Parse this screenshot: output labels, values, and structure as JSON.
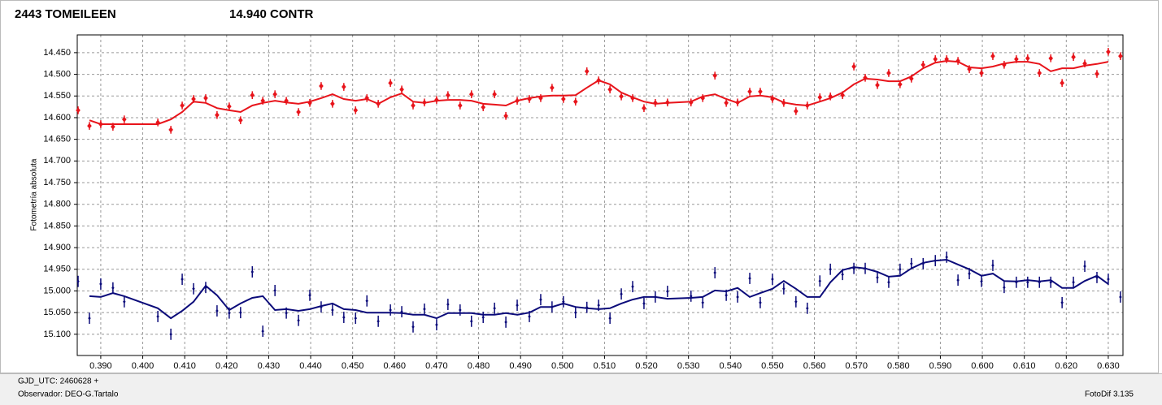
{
  "chart_data": {
    "type": "scatter",
    "y_label": "Fotometría absoluta",
    "footer": {
      "gjd": "GJD_UTC: 2460628 +",
      "observer": "Observador: DEO-G.Tartalo",
      "software": "FotoDif 3.135"
    },
    "xlim": [
      0.3844,
      0.6335
    ],
    "ylim": [
      14.409,
      15.149
    ],
    "y_inverted": true,
    "grid": true,
    "xticks": [
      {
        "value": 0.39,
        "label": "0.390"
      },
      {
        "value": 0.4,
        "label": "0.400"
      },
      {
        "value": 0.41,
        "label": "0.410"
      },
      {
        "value": 0.42,
        "label": "0.420"
      },
      {
        "value": 0.43,
        "label": "0.430"
      },
      {
        "value": 0.44,
        "label": "0.440"
      },
      {
        "value": 0.45,
        "label": "0.450"
      },
      {
        "value": 0.46,
        "label": "0.460"
      },
      {
        "value": 0.47,
        "label": "0.470"
      },
      {
        "value": 0.48,
        "label": "0.480"
      },
      {
        "value": 0.49,
        "label": "0.490"
      },
      {
        "value": 0.5,
        "label": "0.500"
      },
      {
        "value": 0.51,
        "label": "0.510"
      },
      {
        "value": 0.52,
        "label": "0.520"
      },
      {
        "value": 0.53,
        "label": "0.530"
      },
      {
        "value": 0.54,
        "label": "0.540"
      },
      {
        "value": 0.55,
        "label": "0.550"
      },
      {
        "value": 0.56,
        "label": "0.560"
      },
      {
        "value": 0.57,
        "label": "0.570"
      },
      {
        "value": 0.58,
        "label": "0.580"
      },
      {
        "value": 0.59,
        "label": "0.590"
      },
      {
        "value": 0.6,
        "label": "0.600"
      },
      {
        "value": 0.61,
        "label": "0.610"
      },
      {
        "value": 0.62,
        "label": "0.620"
      },
      {
        "value": 0.63,
        "label": "0.630"
      }
    ],
    "yticks": [
      {
        "value": 14.45,
        "label": "14.450"
      },
      {
        "value": 14.5,
        "label": "14.500"
      },
      {
        "value": 14.55,
        "label": "14.550"
      },
      {
        "value": 14.6,
        "label": "14.600"
      },
      {
        "value": 14.65,
        "label": "14.650"
      },
      {
        "value": 14.7,
        "label": "14.700"
      },
      {
        "value": 14.75,
        "label": "14.750"
      },
      {
        "value": 14.8,
        "label": "14.800"
      },
      {
        "value": 14.85,
        "label": "14.850"
      },
      {
        "value": 14.9,
        "label": "14.900"
      },
      {
        "value": 14.95,
        "label": "14.950"
      },
      {
        "value": 15.0,
        "label": "15.000"
      },
      {
        "value": 15.05,
        "label": "15.050"
      },
      {
        "value": 15.1,
        "label": "15.100"
      }
    ],
    "x": [
      0.3846,
      0.3873,
      0.39,
      0.3929,
      0.3956,
      0.4036,
      0.4067,
      0.4094,
      0.4121,
      0.415,
      0.4177,
      0.4206,
      0.4233,
      0.4261,
      0.4286,
      0.4315,
      0.4342,
      0.4371,
      0.4398,
      0.4425,
      0.4452,
      0.4479,
      0.4507,
      0.4534,
      0.4561,
      0.459,
      0.4617,
      0.4644,
      0.4671,
      0.47,
      0.4727,
      0.4756,
      0.4783,
      0.4811,
      0.4838,
      0.4865,
      0.4892,
      0.4921,
      0.4948,
      0.4975,
      0.5002,
      0.5031,
      0.5058,
      0.5086,
      0.5113,
      0.514,
      0.5167,
      0.5194,
      0.5221,
      0.525,
      0.5306,
      0.5334,
      0.5363,
      0.539,
      0.5417,
      0.5446,
      0.5471,
      0.55,
      0.5527,
      0.5556,
      0.5583,
      0.5613,
      0.5638,
      0.5667,
      0.5694,
      0.5721,
      0.575,
      0.5777,
      0.5804,
      0.5831,
      0.5859,
      0.5888,
      0.5915,
      0.5942,
      0.5969,
      0.5998,
      0.6025,
      0.6052,
      0.6081,
      0.6108,
      0.6136,
      0.6163,
      0.619,
      0.6217,
      0.6244,
      0.6273,
      0.63,
      0.6329
    ],
    "series": [
      {
        "name": "2443 TOMEILEEN",
        "color": "#e8141b",
        "error": 0.009,
        "values": [
          14.583,
          14.619,
          14.615,
          14.621,
          14.604,
          14.611,
          14.628,
          14.572,
          14.557,
          14.555,
          14.594,
          14.574,
          14.606,
          14.548,
          14.561,
          14.546,
          14.561,
          14.587,
          14.566,
          14.527,
          14.568,
          14.529,
          14.583,
          14.555,
          14.568,
          14.52,
          14.535,
          14.572,
          14.565,
          14.559,
          14.548,
          14.572,
          14.546,
          14.576,
          14.546,
          14.596,
          14.561,
          14.557,
          14.555,
          14.531,
          14.557,
          14.563,
          14.493,
          14.514,
          14.535,
          14.551,
          14.555,
          14.578,
          14.566,
          14.565,
          14.565,
          14.555,
          14.503,
          14.566,
          14.565,
          14.54,
          14.54,
          14.557,
          14.566,
          14.585,
          14.572,
          14.553,
          14.551,
          14.548,
          14.482,
          14.508,
          14.525,
          14.497,
          14.523,
          14.51,
          14.478,
          14.465,
          14.465,
          14.469,
          14.488,
          14.497,
          14.458,
          14.478,
          14.465,
          14.463,
          14.497,
          14.463,
          14.52,
          14.46,
          14.475,
          14.499,
          14.448,
          14.458
        ],
        "trend": [
          null,
          14.606,
          14.615,
          14.615,
          14.615,
          14.615,
          14.604,
          14.587,
          14.563,
          14.566,
          14.578,
          14.583,
          14.587,
          14.572,
          14.566,
          14.561,
          14.565,
          14.568,
          14.563,
          14.555,
          14.546,
          14.557,
          14.561,
          14.557,
          14.568,
          14.553,
          14.544,
          14.563,
          14.566,
          14.561,
          14.559,
          14.559,
          14.561,
          14.568,
          14.57,
          14.572,
          14.561,
          14.555,
          14.551,
          14.549,
          14.549,
          14.548,
          14.531,
          14.514,
          14.523,
          14.542,
          14.553,
          14.563,
          14.568,
          14.566,
          14.563,
          14.551,
          14.546,
          14.557,
          14.566,
          14.551,
          14.549,
          14.553,
          14.565,
          14.57,
          14.572,
          14.563,
          14.555,
          14.542,
          14.523,
          14.51,
          14.512,
          14.516,
          14.516,
          14.505,
          14.486,
          14.473,
          14.469,
          14.471,
          14.484,
          14.486,
          14.482,
          14.475,
          14.471,
          14.471,
          14.476,
          14.493,
          14.486,
          14.486,
          14.48,
          14.476,
          14.471,
          null
        ]
      },
      {
        "name": "14.940 CONTR",
        "color": "#0b0b7a",
        "error": 0.013,
        "values": [
          14.978,
          15.063,
          14.984,
          14.993,
          15.025,
          15.059,
          15.1,
          14.973,
          14.995,
          14.992,
          15.046,
          15.051,
          15.05,
          14.956,
          15.093,
          14.999,
          15.051,
          15.068,
          15.01,
          15.037,
          15.044,
          15.061,
          15.063,
          15.023,
          15.07,
          15.044,
          15.048,
          15.083,
          15.042,
          15.078,
          15.031,
          15.044,
          15.07,
          15.061,
          15.04,
          15.072,
          15.033,
          15.059,
          15.02,
          15.037,
          15.025,
          15.05,
          15.038,
          15.033,
          15.063,
          15.007,
          14.99,
          15.029,
          15.014,
          15.001,
          15.012,
          15.027,
          14.958,
          15.01,
          15.014,
          14.971,
          15.027,
          14.973,
          14.995,
          15.025,
          15.04,
          14.977,
          14.95,
          14.962,
          14.948,
          14.948,
          14.969,
          14.98,
          14.95,
          14.937,
          14.937,
          14.93,
          14.922,
          14.975,
          14.96,
          14.978,
          14.941,
          14.992,
          14.98,
          14.98,
          14.98,
          14.98,
          15.027,
          14.98,
          14.943,
          14.969,
          14.973,
          15.014
        ],
        "trend": [
          null,
          15.012,
          15.014,
          15.005,
          15.012,
          15.04,
          15.063,
          15.046,
          15.025,
          14.988,
          15.01,
          15.044,
          15.029,
          15.016,
          15.012,
          15.044,
          15.042,
          15.046,
          15.042,
          15.035,
          15.029,
          15.042,
          15.044,
          15.05,
          15.05,
          15.05,
          15.051,
          15.055,
          15.055,
          15.063,
          15.051,
          15.051,
          15.051,
          15.055,
          15.055,
          15.051,
          15.055,
          15.05,
          15.037,
          15.037,
          15.029,
          15.037,
          15.04,
          15.042,
          15.04,
          15.029,
          15.02,
          15.014,
          15.014,
          15.018,
          15.016,
          15.014,
          14.999,
          15.001,
          14.993,
          15.014,
          15.005,
          14.995,
          14.977,
          14.995,
          15.014,
          15.014,
          14.98,
          14.952,
          14.945,
          14.948,
          14.956,
          14.967,
          14.965,
          14.948,
          14.935,
          14.93,
          14.928,
          14.939,
          14.95,
          14.965,
          14.96,
          14.977,
          14.978,
          14.975,
          14.978,
          14.975,
          14.993,
          14.993,
          14.977,
          14.965,
          14.984,
          null
        ]
      }
    ]
  }
}
